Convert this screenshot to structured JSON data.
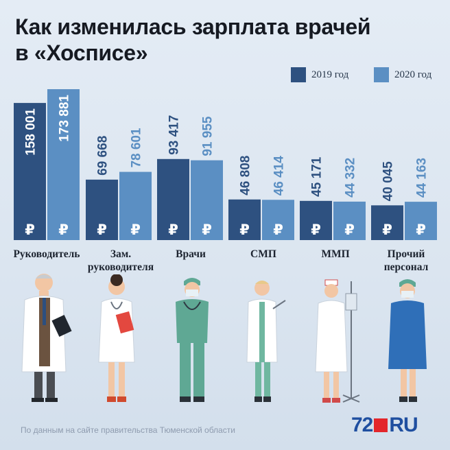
{
  "title_line1": "Как изменилась зарплата врачей",
  "title_line2": "в «Хосписе»",
  "legend": [
    {
      "label": "2019 год",
      "color": "#2e5180"
    },
    {
      "label": "2020 год",
      "color": "#5b8fc3"
    }
  ],
  "source": "По данным на сайте правительства Тюменской области",
  "logo": {
    "number": "72",
    "suffix": "RU"
  },
  "currency_symbol": "₽",
  "chart_data": {
    "type": "bar",
    "categories": [
      "Руководитель",
      "Зам. руководителя",
      "Врачи",
      "СМП",
      "ММП",
      "Прочий персонал"
    ],
    "category_lines": [
      [
        "Руководитель"
      ],
      [
        "Зам.",
        "руководителя"
      ],
      [
        "Врачи"
      ],
      [
        "СМП"
      ],
      [
        "ММП"
      ],
      [
        "Прочий",
        "персонал"
      ]
    ],
    "series": [
      {
        "name": "2019 год",
        "values": [
          158001,
          69668,
          93417,
          46808,
          45171,
          40045
        ],
        "labels": [
          "158 001",
          "69 668",
          "93 417",
          "46 808",
          "45 171",
          "40 045"
        ]
      },
      {
        "name": "2020 год",
        "values": [
          173881,
          78601,
          91955,
          46414,
          44332,
          44163
        ],
        "labels": [
          "173 881",
          "78 601",
          "91 955",
          "46 414",
          "44 332",
          "44 163"
        ]
      }
    ],
    "colors": {
      "dark": "#2e5180",
      "light": "#5b8fc3",
      "label_dark": "#2e5180",
      "label_light": "#5b8fc3"
    },
    "grid": false,
    "legend_position": "top-right"
  },
  "figures": [
    {
      "name": "director-figure",
      "icon": "doctor-with-clipboard"
    },
    {
      "name": "deputy-figure",
      "icon": "doctor-with-folder"
    },
    {
      "name": "doctor-figure",
      "icon": "surgeon-in-scrubs"
    },
    {
      "name": "smp-figure",
      "icon": "nurse-with-syringe"
    },
    {
      "name": "mmp-figure",
      "icon": "nurse-with-iv-stand"
    },
    {
      "name": "other-figure",
      "icon": "nurse-in-blue-dress"
    }
  ]
}
